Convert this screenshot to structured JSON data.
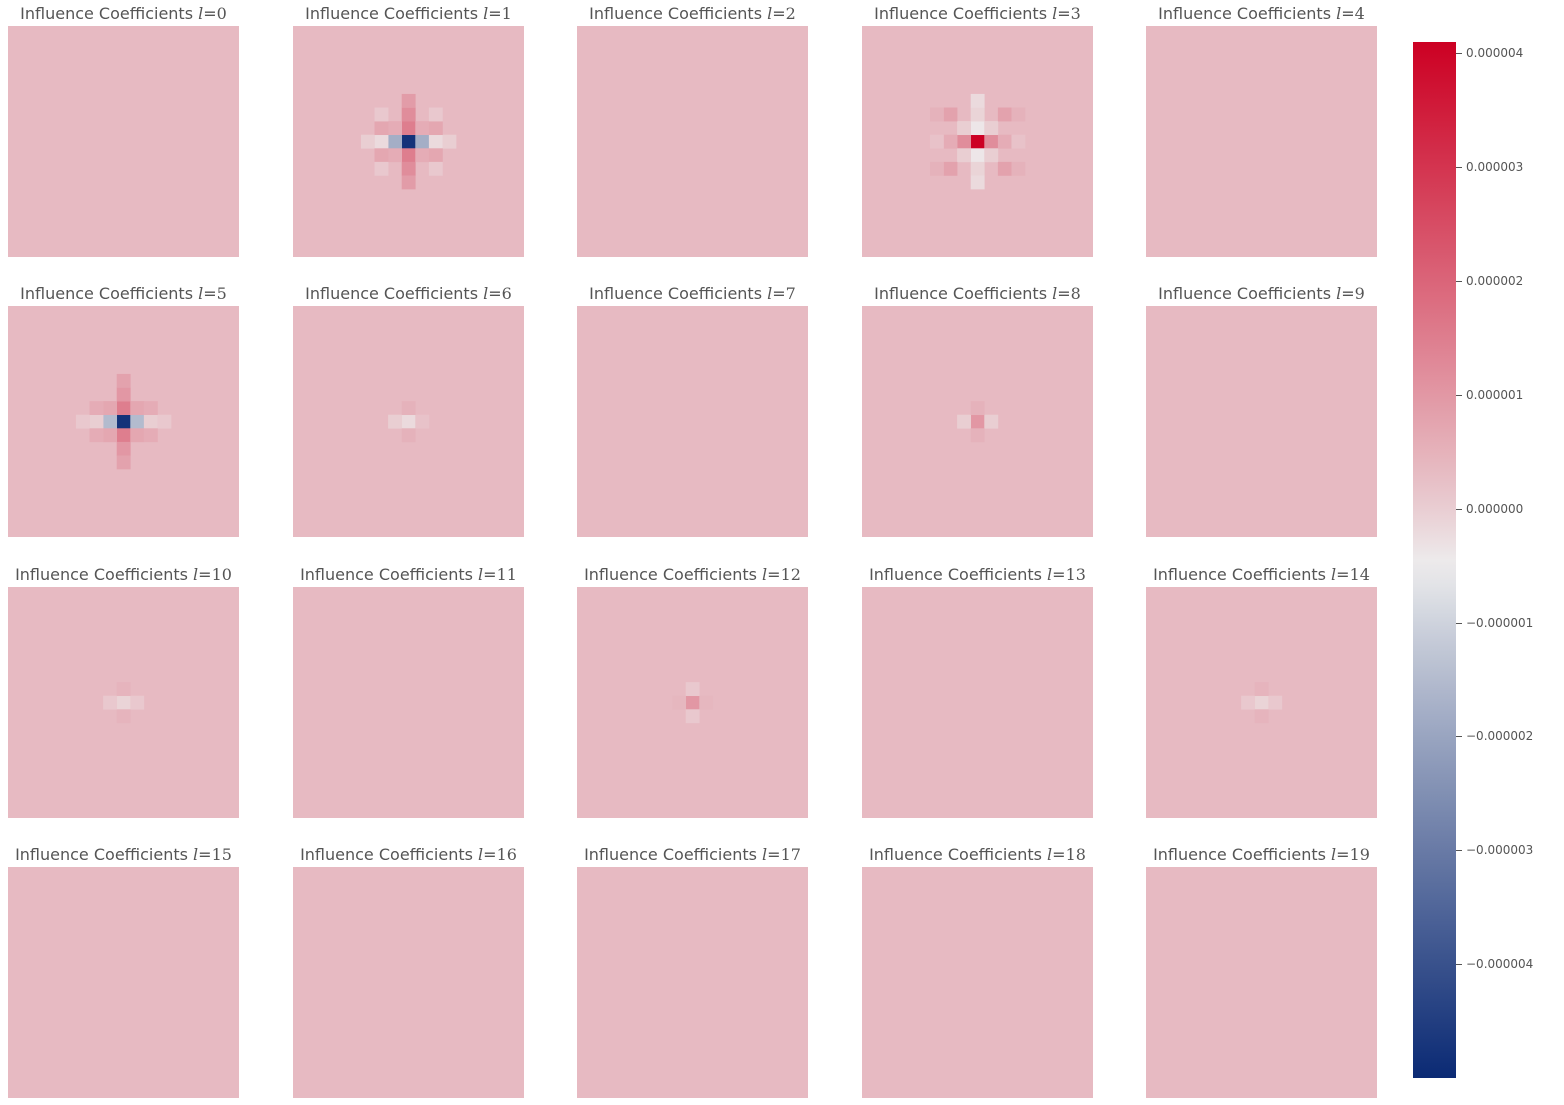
{
  "chart_data": {
    "type": "heatmap",
    "title_prefix": "Influence Coefficients",
    "grid_size": 17,
    "cell_value_unit": "1e-6",
    "background_value": 0.35,
    "panels": [
      {
        "label": "Influence Coefficients l=0",
        "l": "0",
        "hot_cells": []
      },
      {
        "label": "Influence Coefficients l=1",
        "l": "1",
        "hot_cells": [
          [
            8,
            8,
            -4.8
          ],
          [
            7,
            8,
            -1.8
          ],
          [
            9,
            8,
            -1.8
          ],
          [
            6,
            8,
            -0.2
          ],
          [
            10,
            8,
            -0.2
          ],
          [
            5,
            8,
            0.0
          ],
          [
            11,
            8,
            0.0
          ],
          [
            8,
            7,
            1.5
          ],
          [
            8,
            9,
            1.5
          ],
          [
            8,
            6,
            1.2
          ],
          [
            8,
            10,
            1.2
          ],
          [
            8,
            5,
            0.9
          ],
          [
            8,
            11,
            0.9
          ],
          [
            7,
            7,
            0.6
          ],
          [
            9,
            7,
            0.6
          ],
          [
            7,
            9,
            0.6
          ],
          [
            9,
            9,
            0.6
          ],
          [
            6,
            7,
            0.7
          ],
          [
            10,
            7,
            0.7
          ],
          [
            6,
            9,
            0.7
          ],
          [
            10,
            9,
            0.7
          ],
          [
            6,
            6,
            0.1
          ],
          [
            6,
            10,
            0.1
          ],
          [
            10,
            6,
            0.1
          ],
          [
            10,
            10,
            0.1
          ]
        ]
      },
      {
        "label": "Influence Coefficients l=2",
        "l": "2",
        "hot_cells": []
      },
      {
        "label": "Influence Coefficients l=3",
        "l": "3",
        "hot_cells": [
          [
            8,
            8,
            4.1
          ],
          [
            7,
            8,
            1.2
          ],
          [
            9,
            8,
            1.2
          ],
          [
            6,
            8,
            0.6
          ],
          [
            10,
            8,
            0.6
          ],
          [
            8,
            7,
            -0.4
          ],
          [
            8,
            9,
            -0.4
          ],
          [
            8,
            6,
            -0.1
          ],
          [
            8,
            10,
            -0.1
          ],
          [
            8,
            5,
            -0.2
          ],
          [
            8,
            11,
            -0.2
          ],
          [
            7,
            7,
            0.0
          ],
          [
            9,
            7,
            0.0
          ],
          [
            7,
            9,
            0.0
          ],
          [
            9,
            9,
            0.0
          ],
          [
            6,
            6,
            0.8
          ],
          [
            6,
            10,
            0.8
          ],
          [
            10,
            6,
            0.8
          ],
          [
            10,
            10,
            0.8
          ],
          [
            5,
            8,
            0.2
          ],
          [
            11,
            8,
            0.2
          ],
          [
            5,
            6,
            0.5
          ],
          [
            5,
            10,
            0.5
          ],
          [
            11,
            6,
            0.5
          ],
          [
            11,
            10,
            0.5
          ]
        ]
      },
      {
        "label": "Influence Coefficients l=4",
        "l": "4",
        "hot_cells": []
      },
      {
        "label": "Influence Coefficients l=5",
        "l": "5",
        "hot_cells": [
          [
            8,
            8,
            -4.8
          ],
          [
            7,
            8,
            -1.5
          ],
          [
            9,
            8,
            -1.5
          ],
          [
            6,
            8,
            0.0
          ],
          [
            10,
            8,
            0.0
          ],
          [
            5,
            8,
            0.1
          ],
          [
            11,
            8,
            0.1
          ],
          [
            8,
            7,
            1.5
          ],
          [
            8,
            9,
            1.5
          ],
          [
            8,
            6,
            1.0
          ],
          [
            8,
            10,
            1.0
          ],
          [
            8,
            5,
            0.8
          ],
          [
            8,
            11,
            0.8
          ],
          [
            7,
            7,
            0.7
          ],
          [
            9,
            7,
            0.7
          ],
          [
            7,
            9,
            0.7
          ],
          [
            9,
            9,
            0.7
          ],
          [
            6,
            7,
            0.6
          ],
          [
            10,
            7,
            0.6
          ],
          [
            6,
            9,
            0.6
          ],
          [
            10,
            9,
            0.6
          ]
        ]
      },
      {
        "label": "Influence Coefficients l=6",
        "l": "6",
        "hot_cells": [
          [
            8,
            8,
            -0.2
          ],
          [
            7,
            8,
            0.0
          ],
          [
            9,
            8,
            0.2
          ],
          [
            8,
            7,
            0.5
          ],
          [
            8,
            9,
            0.5
          ]
        ]
      },
      {
        "label": "Influence Coefficients l=7",
        "l": "7",
        "hot_cells": []
      },
      {
        "label": "Influence Coefficients l=8",
        "l": "8",
        "hot_cells": [
          [
            8,
            8,
            1.0
          ],
          [
            7,
            8,
            0.0
          ],
          [
            9,
            8,
            0.0
          ],
          [
            8,
            7,
            0.5
          ],
          [
            8,
            9,
            0.5
          ]
        ]
      },
      {
        "label": "Influence Coefficients l=9",
        "l": "9",
        "hot_cells": []
      },
      {
        "label": "Influence Coefficients l=10",
        "l": "10",
        "hot_cells": [
          [
            8,
            8,
            -0.1
          ],
          [
            7,
            8,
            0.1
          ],
          [
            9,
            8,
            0.1
          ],
          [
            8,
            7,
            0.45
          ],
          [
            8,
            9,
            0.45
          ]
        ]
      },
      {
        "label": "Influence Coefficients l=11",
        "l": "11",
        "hot_cells": []
      },
      {
        "label": "Influence Coefficients l=12",
        "l": "12",
        "hot_cells": [
          [
            8,
            8,
            1.0
          ],
          [
            7,
            8,
            0.4
          ],
          [
            9,
            8,
            0.4
          ],
          [
            8,
            7,
            0.1
          ],
          [
            8,
            9,
            0.1
          ]
        ]
      },
      {
        "label": "Influence Coefficients l=13",
        "l": "13",
        "hot_cells": []
      },
      {
        "label": "Influence Coefficients l=14",
        "l": "14",
        "hot_cells": [
          [
            8,
            8,
            -0.1
          ],
          [
            7,
            8,
            0.1
          ],
          [
            9,
            8,
            0.1
          ],
          [
            8,
            7,
            0.45
          ],
          [
            8,
            9,
            0.45
          ]
        ]
      },
      {
        "label": "Influence Coefficients l=15",
        "l": "15",
        "hot_cells": []
      },
      {
        "label": "Influence Coefficients l=16",
        "l": "16",
        "hot_cells": []
      },
      {
        "label": "Influence Coefficients l=17",
        "l": "17",
        "hot_cells": []
      },
      {
        "label": "Influence Coefficients l=18",
        "l": "18",
        "hot_cells": []
      },
      {
        "label": "Influence Coefficients l=19",
        "l": "19",
        "hot_cells": []
      }
    ],
    "colorbar": {
      "vmin": -5.0,
      "vmax": 4.1,
      "scale": "1e-6",
      "ticks": [
        {
          "value": 4,
          "label": "0.000004"
        },
        {
          "value": 3,
          "label": "0.000003"
        },
        {
          "value": 2,
          "label": "0.000002"
        },
        {
          "value": 1,
          "label": "0.000001"
        },
        {
          "value": 0,
          "label": "0.000000"
        },
        {
          "value": -1,
          "label": "−0.000001"
        },
        {
          "value": -2,
          "label": "−0.000002"
        },
        {
          "value": -3,
          "label": "−0.000003"
        },
        {
          "value": -4,
          "label": "−0.000004"
        }
      ],
      "colors": {
        "low": "#0b2a74",
        "mid": "#eeeeee",
        "high": "#cc0023"
      }
    }
  }
}
